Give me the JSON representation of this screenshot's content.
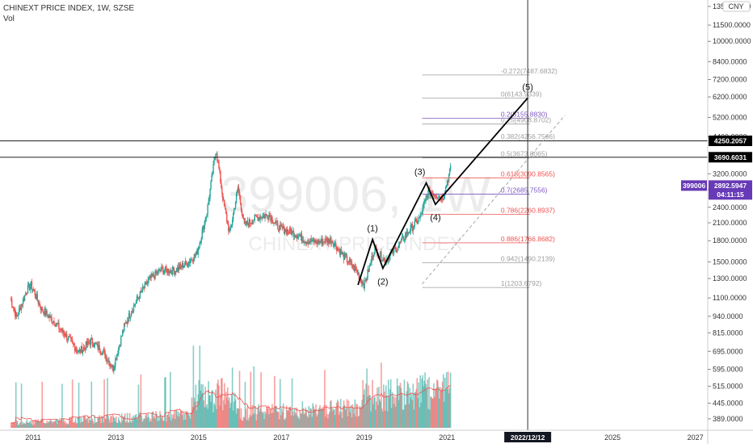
{
  "header": {
    "title": "CHINEXT PRICE INDEX, 1W, SZSE",
    "indicator": "Vol"
  },
  "watermark": {
    "symbol": "399006, 1W",
    "name": "CHINEXT PRICE INDEX"
  },
  "colors": {
    "up": "#26a69a",
    "down": "#ef5350",
    "fib_gray": "#9e9e9e",
    "fib_red": "#ef5350",
    "fib_purple": "#7e57c2",
    "ma": "#ef5350",
    "tag_black": "#000000",
    "tag_purple": "#673ab7"
  },
  "axis": {
    "currency": "CNY",
    "y_ticks": [
      {
        "v": 13500,
        "label": "13500.0000"
      },
      {
        "v": 11500,
        "label": "11500.0000"
      },
      {
        "v": 10000,
        "label": "10000.0000"
      },
      {
        "v": 8400,
        "label": "8400.0000"
      },
      {
        "v": 7200,
        "label": "7200.0000"
      },
      {
        "v": 6200,
        "label": "6200.0000"
      },
      {
        "v": 5200,
        "label": "5200.0000"
      },
      {
        "v": 4400,
        "label": "4400.0000"
      },
      {
        "v": 3200,
        "label": "3200.0000"
      },
      {
        "v": 2800,
        "label": "2800.0000"
      },
      {
        "v": 2400,
        "label": "2400.0000"
      },
      {
        "v": 2100,
        "label": "2100.0000"
      },
      {
        "v": 1800,
        "label": "1800.0000"
      },
      {
        "v": 1500,
        "label": "1500.0000"
      },
      {
        "v": 1300,
        "label": "1300.0000"
      },
      {
        "v": 1100,
        "label": "1100.0000"
      },
      {
        "v": 940,
        "label": "940.0000"
      },
      {
        "v": 815,
        "label": "815.0000"
      },
      {
        "v": 695,
        "label": "695.0000"
      },
      {
        "v": 595,
        "label": "595.0000"
      },
      {
        "v": 515,
        "label": "515.0000"
      },
      {
        "v": 445,
        "label": "445.0000"
      },
      {
        "v": 389,
        "label": "389.0000"
      }
    ],
    "x_ticks": [
      "2011",
      "2013",
      "2015",
      "2017",
      "2019",
      "2021",
      "2025",
      "2027"
    ],
    "cursor_date": "2022/12/12"
  },
  "price_tags": {
    "level_a": "4250.2057",
    "level_b": "3690.6031",
    "symbol": "399006",
    "last": "2892.5947",
    "countdown": "04:11:15"
  },
  "chart_data": {
    "type": "candlestick",
    "scale": "log",
    "x_range": [
      2010.2,
      2027.3
    ],
    "y_range": [
      360,
      13500
    ],
    "price_path": [
      [
        2010.45,
        1100
      ],
      [
        2010.6,
        930
      ],
      [
        2010.85,
        1180
      ],
      [
        2010.95,
        1230
      ],
      [
        2011.2,
        1000
      ],
      [
        2011.5,
        900
      ],
      [
        2011.9,
        760
      ],
      [
        2012.1,
        690
      ],
      [
        2012.4,
        760
      ],
      [
        2012.7,
        690
      ],
      [
        2012.93,
        600
      ],
      [
        2013.2,
        860
      ],
      [
        2013.5,
        1080
      ],
      [
        2013.8,
        1290
      ],
      [
        2014.1,
        1400
      ],
      [
        2014.4,
        1390
      ],
      [
        2014.7,
        1480
      ],
      [
        2014.95,
        1600
      ],
      [
        2015.2,
        2300
      ],
      [
        2015.42,
        3982
      ],
      [
        2015.6,
        2500
      ],
      [
        2015.75,
        1900
      ],
      [
        2015.95,
        2850
      ],
      [
        2016.1,
        2050
      ],
      [
        2016.4,
        2200
      ],
      [
        2016.7,
        2250
      ],
      [
        2016.95,
        2000
      ],
      [
        2017.3,
        1930
      ],
      [
        2017.6,
        1800
      ],
      [
        2017.95,
        1780
      ],
      [
        2018.2,
        1820
      ],
      [
        2018.5,
        1580
      ],
      [
        2018.8,
        1400
      ],
      [
        2019.0,
        1230
      ],
      [
        2019.25,
        1680
      ],
      [
        2019.5,
        1520
      ],
      [
        2019.8,
        1700
      ],
      [
        2020.1,
        1980
      ],
      [
        2020.35,
        2200
      ],
      [
        2020.55,
        2750
      ],
      [
        2020.7,
        2700
      ],
      [
        2020.9,
        2610
      ],
      [
        2021.1,
        3400
      ]
    ],
    "volume_range": [
      0,
      100
    ],
    "fib_levels": [
      {
        "ratio": "-0.272",
        "price": 7487.6832,
        "label": "-0.272(7487.6832)",
        "color": "gray"
      },
      {
        "ratio": "0",
        "price": 6143.9339,
        "label": "0(6143.9339)",
        "color": "gray"
      },
      {
        "ratio": "0.2",
        "price": 5155.883,
        "label": "0.2(5155.8830)",
        "color": "purple"
      },
      {
        "ratio": "0.25",
        "price": 4908.8702,
        "label": "0.25(4908.8702)",
        "color": "gray"
      },
      {
        "ratio": "0.382",
        "price": 4256.7566,
        "label": "0.382(4256.7566)",
        "color": "gray"
      },
      {
        "ratio": "0.5",
        "price": 3673.8065,
        "label": "0.5(3673.8065)",
        "color": "gray"
      },
      {
        "ratio": "0.618",
        "price": 3090.8565,
        "label": "0.618(3090.8565)",
        "color": "red"
      },
      {
        "ratio": "0.7",
        "price": 2685.7556,
        "label": "0.7(2685.7556)",
        "color": "purple"
      },
      {
        "ratio": "0.786",
        "price": 2260.8937,
        "label": "0.786(2260.8937)",
        "color": "red"
      },
      {
        "ratio": "0.886",
        "price": 1766.8682,
        "label": "0.886(1766.8682)",
        "color": "red"
      },
      {
        "ratio": "0.942",
        "price": 1490.2139,
        "label": "0.942(1490.2139)",
        "color": "gray"
      },
      {
        "ratio": "1",
        "price": 1203.6792,
        "label": "1(1203.6792)",
        "color": "gray"
      }
    ],
    "horizontal_lines": [
      4250.2057,
      3690.6031
    ],
    "cursor_x": 2022.95,
    "elliott_wave": [
      {
        "x": 2018.85,
        "y": 1230,
        "label": ""
      },
      {
        "x": 2019.2,
        "y": 1820,
        "label": "(1)"
      },
      {
        "x": 2019.45,
        "y": 1420,
        "label": "(2)"
      },
      {
        "x": 2020.5,
        "y": 2960,
        "label": "(3)"
      },
      {
        "x": 2020.72,
        "y": 2460,
        "label": "(4)"
      },
      {
        "x": 2022.95,
        "y": 6143.9339,
        "label": "(5)"
      }
    ],
    "trend_line": {
      "x1": 2020.4,
      "y1": 1240,
      "x2": 2023.85,
      "y2": 5300
    }
  }
}
